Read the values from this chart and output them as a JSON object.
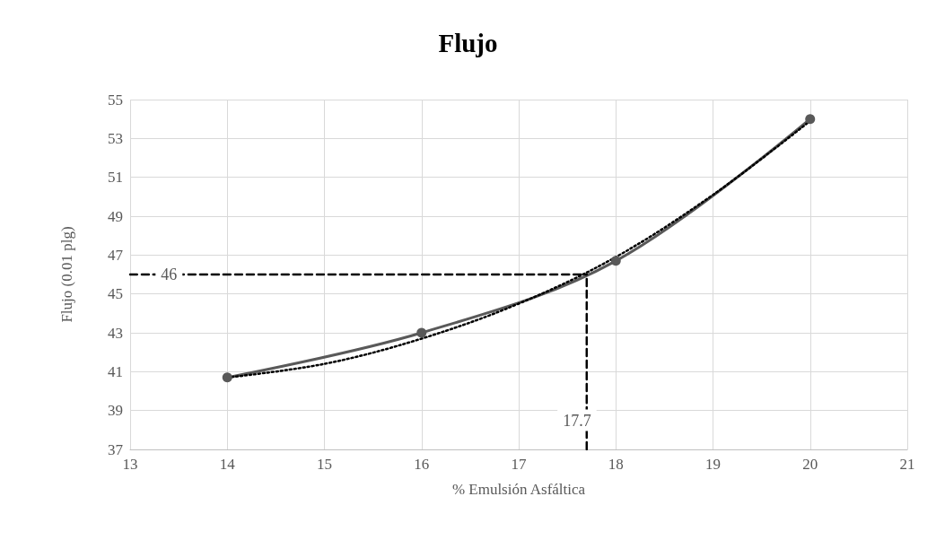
{
  "chart_data": {
    "type": "line",
    "title": "Flujo",
    "xlabel": "% Emulsión Asfáltica",
    "ylabel": "Flujo (0.01 plg)",
    "xlim": [
      13,
      21
    ],
    "xticks": [
      13,
      14,
      15,
      16,
      17,
      18,
      19,
      20,
      21
    ],
    "ylim": [
      37,
      55
    ],
    "yticks": [
      37,
      39,
      41,
      43,
      45,
      47,
      49,
      51,
      53,
      55
    ],
    "grid": true,
    "series": [
      {
        "color": "#595959",
        "x": [
          14,
          16,
          18,
          20
        ],
        "values": [
          40.7,
          43.0,
          46.7,
          54.0
        ],
        "marker": "circle",
        "line_style": "solid"
      },
      {
        "color": "#000000",
        "x": [
          14,
          15,
          16,
          17,
          18,
          19,
          20
        ],
        "values": [
          40.7,
          41.4,
          42.7,
          44.5,
          46.9,
          50.1,
          53.9
        ],
        "marker": "none",
        "line_style": "dotted"
      },
      {
        "color": "#000000",
        "x": [
          13,
          17.7
        ],
        "values": [
          46,
          46
        ],
        "marker": "none",
        "line_style": "dashed"
      },
      {
        "color": "#000000",
        "x": [
          17.7,
          17.7
        ],
        "values": [
          37,
          46
        ],
        "marker": "none",
        "line_style": "dashed"
      }
    ],
    "annotations": [
      {
        "text": "46",
        "x": 13.4,
        "y": 46
      },
      {
        "text": "17.7",
        "x": 17.6,
        "y": 38.5
      }
    ]
  }
}
